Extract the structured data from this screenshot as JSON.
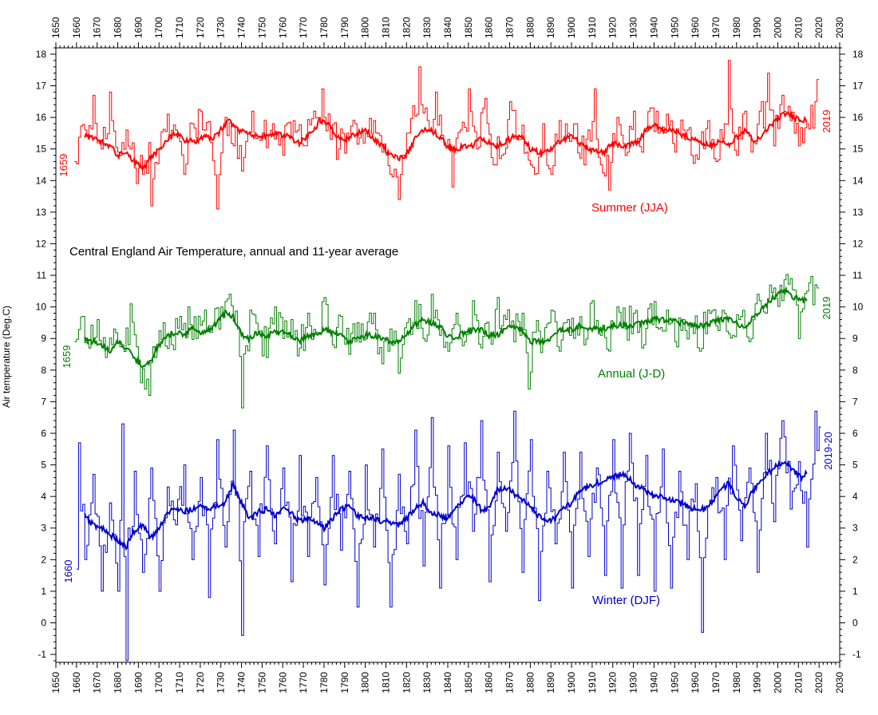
{
  "chart_data": {
    "type": "line",
    "title": "Central England Air Temperature, annual and 11-year average",
    "ylabel": "Air temperature (Deg.C)",
    "xlabel": "",
    "xlim": [
      1650,
      2030
    ],
    "ylim": [
      -1.25,
      18.2
    ],
    "x_ticks_major": [
      1650,
      1660,
      1670,
      1680,
      1690,
      1700,
      1710,
      1720,
      1730,
      1740,
      1750,
      1760,
      1770,
      1780,
      1790,
      1800,
      1810,
      1820,
      1830,
      1840,
      1850,
      1860,
      1870,
      1880,
      1890,
      1900,
      1910,
      1920,
      1930,
      1940,
      1950,
      1960,
      1970,
      1980,
      1990,
      2000,
      2010,
      2020,
      2030
    ],
    "y_ticks": [
      -1,
      0,
      1,
      2,
      3,
      4,
      5,
      6,
      7,
      8,
      9,
      10,
      11,
      12,
      13,
      14,
      15,
      16,
      17,
      18
    ],
    "grid": false,
    "series": [
      {
        "name": "Summer (JJA)",
        "color": "#ff0000",
        "start_label": "1659",
        "end_label": "2019",
        "kind": "annual-step",
        "x_anchor": [
          1659,
          1665,
          1668,
          1672,
          1676,
          1680,
          1684,
          1688,
          1692,
          1695,
          1696,
          1700,
          1704,
          1708,
          1712,
          1716,
          1720,
          1725,
          1728,
          1732,
          1736,
          1740,
          1745,
          1750,
          1755,
          1760,
          1765,
          1770,
          1775,
          1779,
          1783,
          1787,
          1791,
          1795,
          1800,
          1804,
          1808,
          1812,
          1816,
          1820,
          1826,
          1830,
          1834,
          1838,
          1842,
          1846,
          1850,
          1854,
          1858,
          1862,
          1866,
          1870,
          1874,
          1878,
          1882,
          1886,
          1890,
          1894,
          1898,
          1902,
          1906,
          1911,
          1914,
          1918,
          1922,
          1926,
          1930,
          1934,
          1938,
          1942,
          1946,
          1950,
          1954,
          1958,
          1962,
          1966,
          1970,
          1974,
          1976,
          1980,
          1984,
          1988,
          1992,
          1995,
          1998,
          2002,
          2006,
          2010,
          2014,
          2018,
          2019
        ],
        "annual_anchor": [
          14.6,
          15.4,
          16.7,
          15.0,
          16.8,
          14.9,
          15.6,
          14.4,
          14.2,
          15.2,
          13.2,
          15.0,
          16.1,
          15.6,
          14.2,
          15.8,
          16.2,
          15.2,
          13.1,
          16.0,
          15.1,
          14.3,
          16.2,
          15.5,
          15.8,
          14.8,
          15.9,
          15.1,
          16.2,
          16.9,
          15.3,
          15.0,
          15.5,
          15.8,
          15.5,
          15.9,
          14.9,
          14.2,
          13.4,
          15.5,
          17.6,
          15.9,
          16.8,
          15.2,
          13.8,
          15.6,
          16.9,
          15.0,
          16.6,
          14.5,
          14.8,
          16.5,
          15.3,
          14.9,
          14.2,
          15.8,
          14.2,
          15.9,
          15.5,
          15.8,
          14.5,
          16.9,
          14.5,
          13.7,
          16.0,
          14.8,
          16.2,
          14.9,
          16.3,
          15.5,
          16.1,
          14.9,
          15.6,
          14.8,
          15.2,
          15.9,
          14.6,
          15.8,
          17.8,
          14.8,
          16.2,
          15.2,
          16.5,
          17.4,
          15.1,
          16.7,
          15.9,
          15.1,
          15.8,
          16.5,
          17.2
        ],
        "avg_x": [
          1664,
          1670,
          1676,
          1680,
          1684,
          1688,
          1692,
          1696,
          1700,
          1704,
          1708,
          1712,
          1718,
          1722,
          1726,
          1730,
          1734,
          1738,
          1742,
          1746,
          1750,
          1756,
          1762,
          1768,
          1774,
          1778,
          1782,
          1786,
          1790,
          1796,
          1800,
          1804,
          1808,
          1812,
          1816,
          1820,
          1824,
          1828,
          1832,
          1836,
          1840,
          1844,
          1848,
          1852,
          1856,
          1860,
          1864,
          1868,
          1872,
          1876,
          1880,
          1884,
          1888,
          1892,
          1896,
          1900,
          1906,
          1912,
          1916,
          1920,
          1926,
          1932,
          1936,
          1940,
          1944,
          1948,
          1952,
          1956,
          1960,
          1964,
          1968,
          1972,
          1976,
          1980,
          1984,
          1988,
          1992,
          1996,
          2000,
          2004,
          2008,
          2012,
          2014
        ],
        "avg_y": [
          15.4,
          15.3,
          15.1,
          14.8,
          14.9,
          14.6,
          14.4,
          14.7,
          15.0,
          15.3,
          15.5,
          15.3,
          15.2,
          15.4,
          15.3,
          15.6,
          15.9,
          15.6,
          15.5,
          15.4,
          15.4,
          15.5,
          15.4,
          15.2,
          15.5,
          15.9,
          15.8,
          15.4,
          15.3,
          15.5,
          15.6,
          15.3,
          15.1,
          14.8,
          14.7,
          14.8,
          15.3,
          15.6,
          15.6,
          15.4,
          15.1,
          15.0,
          15.1,
          15.1,
          15.4,
          15.2,
          15.1,
          15.2,
          15.4,
          15.4,
          15.0,
          14.9,
          14.9,
          15.1,
          15.3,
          15.4,
          15.1,
          14.9,
          14.9,
          15.2,
          15.1,
          15.2,
          15.6,
          15.8,
          15.6,
          15.6,
          15.5,
          15.4,
          15.3,
          15.2,
          15.1,
          15.3,
          15.1,
          15.4,
          15.6,
          15.3,
          15.4,
          15.7,
          16.0,
          16.1,
          16.0,
          15.9,
          15.9
        ]
      },
      {
        "name": "Annual (J-D)",
        "color": "#008000",
        "start_label": "1659",
        "end_label": "2019",
        "kind": "annual-step",
        "x_anchor": [
          1659,
          1663,
          1666,
          1670,
          1674,
          1678,
          1682,
          1686,
          1690,
          1693,
          1695,
          1698,
          1702,
          1706,
          1710,
          1714,
          1718,
          1722,
          1726,
          1730,
          1734,
          1738,
          1740,
          1744,
          1748,
          1752,
          1756,
          1760,
          1764,
          1768,
          1772,
          1776,
          1780,
          1784,
          1788,
          1792,
          1796,
          1800,
          1804,
          1808,
          1812,
          1816,
          1820,
          1824,
          1828,
          1832,
          1836,
          1840,
          1844,
          1848,
          1852,
          1856,
          1860,
          1864,
          1868,
          1872,
          1876,
          1879,
          1882,
          1886,
          1890,
          1894,
          1898,
          1902,
          1906,
          1910,
          1914,
          1918,
          1922,
          1926,
          1930,
          1934,
          1938,
          1942,
          1946,
          1950,
          1954,
          1958,
          1962,
          1966,
          1970,
          1974,
          1978,
          1982,
          1986,
          1990,
          1994,
          1998,
          2002,
          2006,
          2010,
          2014,
          2018,
          2019
        ],
        "annual_anchor": [
          8.9,
          9.7,
          8.7,
          9.6,
          8.4,
          9.3,
          8.8,
          10.1,
          8.3,
          7.4,
          7.2,
          8.4,
          9.5,
          8.8,
          9.7,
          10.0,
          9.0,
          9.9,
          9.4,
          10.0,
          10.4,
          9.3,
          6.8,
          9.9,
          9.2,
          8.4,
          10.0,
          9.0,
          9.6,
          8.7,
          9.8,
          9.2,
          10.3,
          8.8,
          9.7,
          8.5,
          9.5,
          9.0,
          9.8,
          8.2,
          9.3,
          7.9,
          9.5,
          10.2,
          9.0,
          10.4,
          9.1,
          8.6,
          9.8,
          8.9,
          10.2,
          8.7,
          9.1,
          10.3,
          9.6,
          8.9,
          9.8,
          7.4,
          9.2,
          8.9,
          9.9,
          8.6,
          9.6,
          9.3,
          8.8,
          10.2,
          9.1,
          8.6,
          10.0,
          9.3,
          9.8,
          8.7,
          10.1,
          9.3,
          9.9,
          8.9,
          9.6,
          9.4,
          8.6,
          9.9,
          9.4,
          9.8,
          9.1,
          9.7,
          8.9,
          10.4,
          9.8,
          10.6,
          10.2,
          10.9,
          9.0,
          10.5,
          10.7,
          10.6
        ],
        "avg_x": [
          1664,
          1668,
          1672,
          1676,
          1680,
          1684,
          1688,
          1692,
          1696,
          1700,
          1704,
          1708,
          1712,
          1716,
          1720,
          1724,
          1728,
          1732,
          1736,
          1740,
          1744,
          1748,
          1752,
          1756,
          1760,
          1764,
          1768,
          1772,
          1776,
          1780,
          1784,
          1788,
          1792,
          1796,
          1800,
          1804,
          1808,
          1812,
          1816,
          1820,
          1824,
          1828,
          1832,
          1836,
          1840,
          1844,
          1848,
          1852,
          1856,
          1860,
          1864,
          1868,
          1872,
          1876,
          1880,
          1884,
          1888,
          1892,
          1896,
          1900,
          1904,
          1908,
          1912,
          1916,
          1920,
          1924,
          1928,
          1932,
          1936,
          1940,
          1944,
          1948,
          1952,
          1956,
          1960,
          1964,
          1968,
          1972,
          1976,
          1980,
          1984,
          1988,
          1992,
          1996,
          2000,
          2004,
          2008,
          2012,
          2014
        ],
        "avg_y": [
          9.0,
          8.9,
          8.8,
          8.6,
          8.9,
          8.7,
          8.4,
          8.1,
          8.3,
          8.8,
          9.1,
          9.2,
          9.1,
          9.3,
          9.2,
          9.3,
          9.5,
          9.8,
          9.7,
          9.1,
          9.0,
          9.2,
          9.1,
          9.2,
          9.2,
          9.1,
          8.9,
          9.1,
          9.1,
          9.3,
          9.2,
          9.1,
          8.9,
          9.0,
          9.1,
          9.1,
          9.0,
          8.9,
          8.9,
          9.1,
          9.4,
          9.6,
          9.5,
          9.4,
          9.1,
          9.0,
          9.2,
          9.3,
          9.3,
          9.1,
          9.1,
          9.3,
          9.4,
          9.3,
          8.9,
          8.9,
          8.9,
          9.2,
          9.3,
          9.3,
          9.4,
          9.3,
          9.3,
          9.3,
          9.4,
          9.4,
          9.4,
          9.5,
          9.5,
          9.6,
          9.6,
          9.6,
          9.5,
          9.5,
          9.4,
          9.4,
          9.5,
          9.6,
          9.6,
          9.5,
          9.3,
          9.7,
          9.9,
          10.2,
          10.4,
          10.5,
          10.3,
          10.2,
          10.2
        ]
      },
      {
        "name": "Winter (DJF)",
        "color": "#0000cc",
        "start_label": "1660",
        "end_label": "2019-20",
        "kind": "annual-step",
        "x_anchor": [
          1660,
          1661,
          1664,
          1668,
          1672,
          1676,
          1680,
          1682,
          1684,
          1685,
          1688,
          1692,
          1696,
          1700,
          1704,
          1708,
          1712,
          1716,
          1720,
          1724,
          1728,
          1732,
          1736,
          1740,
          1741,
          1744,
          1748,
          1752,
          1756,
          1760,
          1764,
          1768,
          1772,
          1776,
          1780,
          1784,
          1788,
          1792,
          1796,
          1800,
          1804,
          1808,
          1812,
          1816,
          1820,
          1824,
          1828,
          1832,
          1836,
          1840,
          1844,
          1848,
          1852,
          1856,
          1860,
          1864,
          1868,
          1872,
          1876,
          1880,
          1884,
          1888,
          1892,
          1896,
          1900,
          1904,
          1908,
          1912,
          1916,
          1920,
          1924,
          1928,
          1932,
          1936,
          1940,
          1944,
          1948,
          1952,
          1956,
          1960,
          1963,
          1966,
          1970,
          1974,
          1978,
          1982,
          1986,
          1990,
          1994,
          1998,
          2002,
          2006,
          2010,
          2014,
          2018,
          2020
        ],
        "annual_anchor": [
          1.7,
          5.7,
          2.0,
          4.7,
          1.0,
          3.8,
          1.0,
          6.3,
          -1.2,
          3.0,
          4.8,
          1.6,
          4.9,
          1.0,
          4.3,
          3.1,
          5.0,
          2.0,
          4.6,
          0.8,
          5.8,
          2.4,
          6.1,
          -0.4,
          3.2,
          4.8,
          2.1,
          5.6,
          2.5,
          4.9,
          1.3,
          5.3,
          2.1,
          4.6,
          1.2,
          5.3,
          2.3,
          4.8,
          0.5,
          5.0,
          2.4,
          5.5,
          0.5,
          4.7,
          2.5,
          6.1,
          1.8,
          6.5,
          1.1,
          5.6,
          2.0,
          5.7,
          2.9,
          6.4,
          1.3,
          5.4,
          2.9,
          6.7,
          1.6,
          5.8,
          0.7,
          4.8,
          2.5,
          5.4,
          1.1,
          5.4,
          2.1,
          4.9,
          1.5,
          5.8,
          1.1,
          6.0,
          1.5,
          5.3,
          1.0,
          5.5,
          1.1,
          4.8,
          2.0,
          4.4,
          -0.3,
          3.7,
          4.6,
          2.0,
          5.6,
          2.6,
          4.9,
          1.6,
          6.0,
          3.2,
          6.4,
          3.6,
          5.1,
          2.4,
          6.7,
          6.2
        ],
        "avg_x": [
          1664,
          1668,
          1672,
          1676,
          1680,
          1684,
          1688,
          1692,
          1696,
          1700,
          1704,
          1708,
          1712,
          1716,
          1720,
          1724,
          1728,
          1732,
          1736,
          1740,
          1744,
          1748,
          1752,
          1756,
          1760,
          1764,
          1768,
          1772,
          1776,
          1780,
          1784,
          1788,
          1792,
          1796,
          1800,
          1804,
          1808,
          1812,
          1816,
          1820,
          1824,
          1828,
          1832,
          1836,
          1840,
          1844,
          1848,
          1852,
          1856,
          1860,
          1864,
          1868,
          1872,
          1876,
          1880,
          1884,
          1888,
          1892,
          1896,
          1900,
          1904,
          1908,
          1912,
          1916,
          1920,
          1924,
          1928,
          1932,
          1936,
          1940,
          1944,
          1948,
          1952,
          1956,
          1960,
          1964,
          1968,
          1972,
          1976,
          1980,
          1984,
          1988,
          1992,
          1996,
          2000,
          2004,
          2008,
          2012,
          2014
        ],
        "avg_y": [
          3.4,
          3.1,
          3.0,
          2.8,
          2.6,
          2.4,
          2.9,
          3.1,
          2.7,
          3.0,
          3.5,
          3.6,
          3.5,
          3.6,
          3.7,
          3.6,
          3.7,
          3.8,
          4.4,
          3.8,
          3.3,
          3.5,
          3.6,
          3.4,
          3.6,
          3.5,
          3.2,
          3.3,
          3.2,
          3.0,
          3.3,
          3.6,
          3.7,
          3.4,
          3.3,
          3.3,
          3.2,
          3.2,
          3.1,
          3.3,
          3.6,
          3.8,
          3.5,
          3.4,
          3.3,
          3.7,
          3.9,
          4.0,
          3.6,
          3.6,
          4.2,
          4.3,
          4.1,
          3.9,
          3.7,
          3.4,
          3.2,
          3.3,
          3.6,
          3.8,
          4.2,
          4.3,
          4.4,
          4.5,
          4.6,
          4.7,
          4.6,
          4.3,
          4.2,
          4.0,
          4.0,
          3.9,
          3.8,
          3.7,
          3.6,
          3.6,
          3.8,
          4.2,
          4.4,
          4.0,
          3.7,
          4.2,
          4.5,
          4.8,
          5.0,
          5.1,
          4.8,
          4.6,
          4.8
        ]
      }
    ]
  }
}
